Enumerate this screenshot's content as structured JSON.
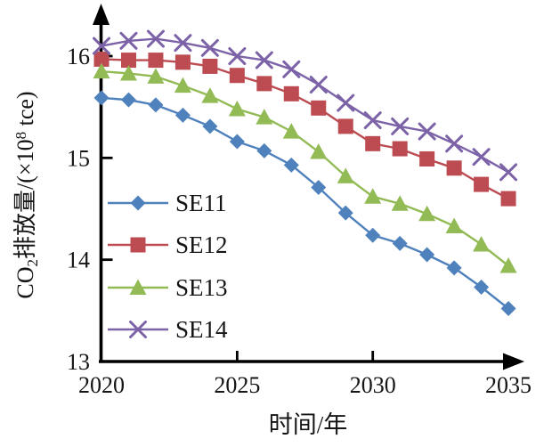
{
  "chart_data": {
    "type": "line",
    "title": "",
    "xlabel": "时间/年",
    "ylabel": "CO2排放量/(×10^8 tce)",
    "ylabel_parts": {
      "pre": "CO",
      "sub": "2",
      "mid": "排放量/(×10",
      "sup": "8",
      "post": " tce)"
    },
    "x": [
      2020,
      2021,
      2022,
      2023,
      2024,
      2025,
      2026,
      2027,
      2028,
      2029,
      2030,
      2031,
      2032,
      2033,
      2034,
      2035
    ],
    "xticks": [
      2020,
      2025,
      2030,
      2035
    ],
    "yticks": [
      13,
      14,
      15,
      16
    ],
    "xlim": [
      2020,
      2035
    ],
    "ylim": [
      13,
      16.3
    ],
    "grid": false,
    "legend_position": "inside-left",
    "axis_color": "#000000",
    "series": [
      {
        "name": "SE11",
        "marker": "diamond",
        "color": "#4F81BD",
        "values": [
          15.59,
          15.57,
          15.52,
          15.42,
          15.31,
          15.16,
          15.07,
          14.93,
          14.71,
          14.46,
          14.24,
          14.16,
          14.05,
          13.92,
          13.73,
          13.52
        ]
      },
      {
        "name": "SE12",
        "marker": "square",
        "color": "#BC4B52",
        "values": [
          15.97,
          15.96,
          15.96,
          15.94,
          15.9,
          15.81,
          15.73,
          15.63,
          15.49,
          15.31,
          15.14,
          15.09,
          14.99,
          14.9,
          14.74,
          14.6
        ]
      },
      {
        "name": "SE13",
        "marker": "triangle",
        "color": "#92BA55",
        "values": [
          15.85,
          15.83,
          15.8,
          15.71,
          15.61,
          15.48,
          15.4,
          15.26,
          15.06,
          14.82,
          14.62,
          14.55,
          14.45,
          14.33,
          14.15,
          13.94
        ]
      },
      {
        "name": "SE14",
        "marker": "x",
        "color": "#7C63A8",
        "values": [
          16.1,
          16.15,
          16.17,
          16.13,
          16.08,
          16.0,
          15.96,
          15.87,
          15.72,
          15.54,
          15.37,
          15.31,
          15.26,
          15.14,
          15.01,
          14.86
        ]
      }
    ]
  }
}
